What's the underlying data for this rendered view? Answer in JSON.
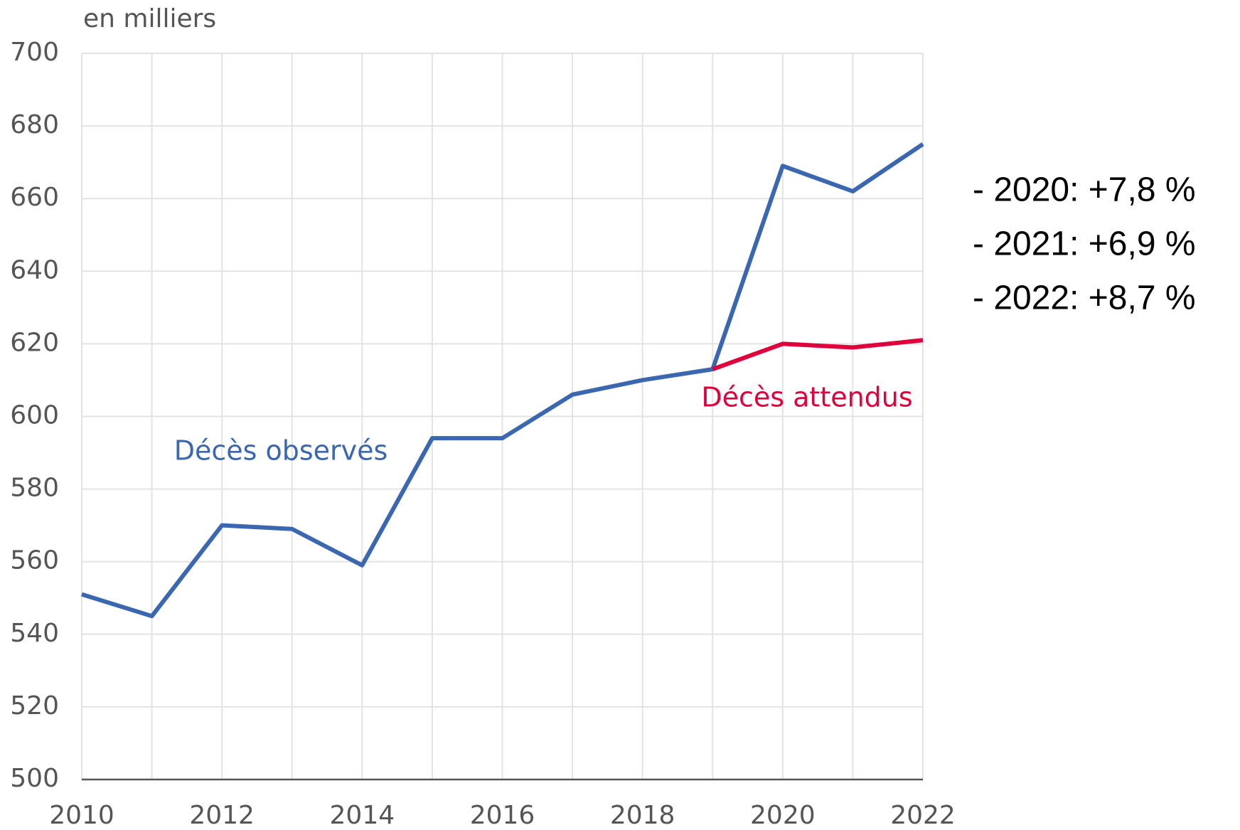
{
  "chart_data": {
    "type": "line",
    "ylabel": "en milliers",
    "x": [
      2010,
      2011,
      2012,
      2013,
      2014,
      2015,
      2016,
      2017,
      2018,
      2019,
      2020,
      2021,
      2022
    ],
    "series": [
      {
        "name": "Décès observés",
        "color": "#3a67b0",
        "values": [
          551,
          545,
          570,
          569,
          559,
          594,
          594,
          606,
          610,
          613,
          669,
          662,
          675
        ]
      },
      {
        "name": "Décès attendus",
        "color": "#e0003c",
        "values": [
          null,
          null,
          null,
          null,
          null,
          null,
          null,
          null,
          null,
          613,
          620,
          619,
          621
        ]
      }
    ],
    "xlim": [
      2010,
      2022
    ],
    "xticks": [
      2010,
      2012,
      2014,
      2016,
      2018,
      2020,
      2022
    ],
    "xminor": [
      2011,
      2013,
      2015,
      2017,
      2019,
      2021
    ],
    "ylim": [
      500,
      700
    ],
    "yticks": [
      500,
      520,
      540,
      560,
      580,
      600,
      620,
      640,
      660,
      680,
      700
    ],
    "grid": true,
    "annotations": [
      "- 2020: +7,8 %",
      "- 2021: +6,9 %",
      "- 2022: +8,7 %"
    ]
  }
}
